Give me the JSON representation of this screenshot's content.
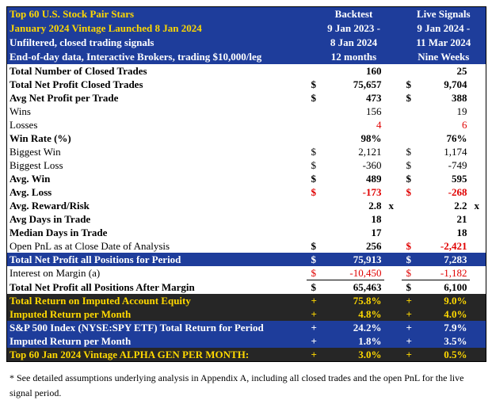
{
  "header": {
    "title_lines": [
      "Top 60 U.S. Stock Pair Stars",
      "January 2024 Vintage Launched 8 Jan 2024",
      "Unfiltered, closed trading signals",
      "End-of-day data, Interactive Brokers, trading $10,000/leg"
    ],
    "backtest": [
      "Backtest",
      "9 Jan 2023 -",
      "8 Jan 2024",
      "12 months"
    ],
    "live": [
      "Live Signals",
      "9 Jan 2024 -",
      "11 Mar 2024",
      "Nine Weeks"
    ]
  },
  "rows": [
    {
      "label": "Total Number of Closed Trades",
      "backtest": {
        "value": "160"
      },
      "live": {
        "value": "25"
      }
    },
    {
      "label": "Total Net Profit Closed Trades",
      "backtest": {
        "sign": "$",
        "value": "75,657"
      },
      "live": {
        "sign": "$",
        "value": "9,704"
      }
    },
    {
      "label": "Avg Net Profit per Trade",
      "backtest": {
        "sign": "$",
        "value": "473"
      },
      "live": {
        "sign": "$",
        "value": "388"
      }
    },
    {
      "label": "Wins",
      "backtest": {
        "value": "156"
      },
      "live": {
        "value": "19"
      }
    },
    {
      "label": "Losses",
      "backtest": {
        "value": "4"
      },
      "live": {
        "value": "6"
      }
    },
    {
      "label": "Win Rate (%)",
      "backtest": {
        "value": "98%"
      },
      "live": {
        "value": "76%"
      }
    },
    {
      "label": "Biggest Win",
      "backtest": {
        "sign": "$",
        "value": "2,121"
      },
      "live": {
        "sign": "$",
        "value": "1,174"
      }
    },
    {
      "label": "Biggest Loss",
      "backtest": {
        "sign": "$",
        "value": "-360"
      },
      "live": {
        "sign": "$",
        "value": "-749"
      }
    },
    {
      "label": "Avg. Win",
      "backtest": {
        "sign": "$",
        "value": "489"
      },
      "live": {
        "sign": "$",
        "value": "595"
      }
    },
    {
      "label": "Avg. Loss",
      "backtest": {
        "sign": "$",
        "value": "-173"
      },
      "live": {
        "sign": "$",
        "value": "-268"
      }
    },
    {
      "label": "Avg. Reward/Risk",
      "backtest": {
        "value": "2.8",
        "suffix": "x"
      },
      "live": {
        "value": "2.2",
        "suffix": "x"
      }
    },
    {
      "label": "Avg Days in Trade",
      "backtest": {
        "value": "18"
      },
      "live": {
        "value": "21"
      }
    },
    {
      "label": "Median Days in Trade",
      "backtest": {
        "value": "17"
      },
      "live": {
        "value": "18"
      }
    },
    {
      "label": "Open PnL as at Close Date of Analysis",
      "backtest": {
        "sign": "$",
        "value": "256"
      },
      "live": {
        "sign": "$",
        "value": "-2,421"
      }
    },
    {
      "label": "Total Net Profit all Positions for Period",
      "backtest": {
        "sign": "$",
        "value": "75,913"
      },
      "live": {
        "sign": "$",
        "value": "7,283"
      }
    },
    {
      "label": "Interest on Margin (a)",
      "backtest": {
        "sign": "$",
        "value": "-10,450"
      },
      "live": {
        "sign": "$",
        "value": "-1,182"
      }
    },
    {
      "label": "Total Net Profit all Positions After Margin",
      "backtest": {
        "sign": "$",
        "value": "65,463"
      },
      "live": {
        "sign": "$",
        "value": "6,100"
      }
    },
    {
      "label": "Total Return on Imputed Account Equity",
      "backtest": {
        "sign": "+",
        "value": "75.8%"
      },
      "live": {
        "sign": "+",
        "value": "9.0%"
      }
    },
    {
      "label": "Imputed Return per Month",
      "backtest": {
        "sign": "+",
        "value": "4.8%"
      },
      "live": {
        "sign": "+",
        "value": "4.0%"
      }
    },
    {
      "label": "S&P 500 Index (NYSE:SPY ETF) Total Return for Period",
      "backtest": {
        "sign": "+",
        "value": "24.2%"
      },
      "live": {
        "sign": "+",
        "value": "7.9%"
      }
    },
    {
      "label": "Imputed Return per Month",
      "backtest": {
        "sign": "+",
        "value": "1.8%"
      },
      "live": {
        "sign": "+",
        "value": "3.5%"
      }
    },
    {
      "label": "Top 60 Jan 2024 Vintage ALPHA GEN PER MONTH:",
      "backtest": {
        "sign": "+",
        "value": "3.0%"
      },
      "live": {
        "sign": "+",
        "value": "0.5%"
      }
    }
  ],
  "footnote": "* See detailed assumptions underlying analysis in Appendix A, including all closed trades and the open PnL for the live signal period."
}
